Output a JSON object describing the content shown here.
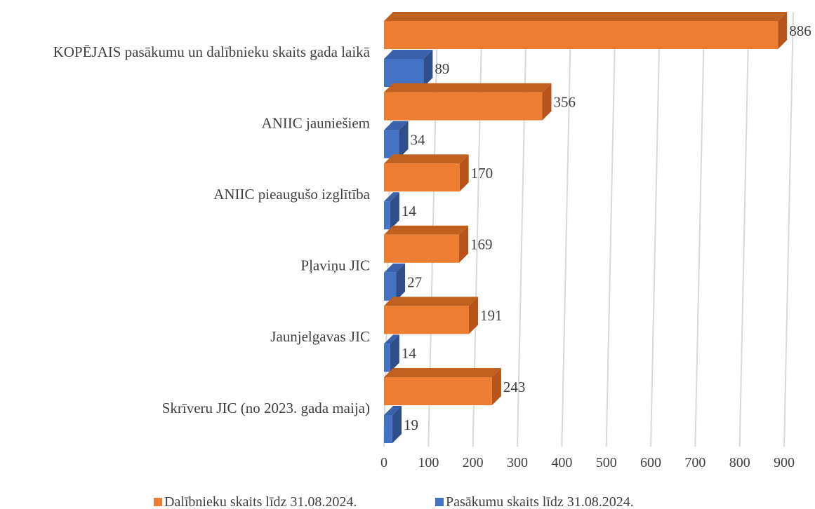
{
  "chart_data": {
    "type": "bar",
    "orientation": "horizontal",
    "three_d": true,
    "categories": [
      "KOPĒJAIS pasākumu un dalībnieku skaits gada laikā",
      "ANIIC jauniešiem",
      "ANIIC pieaugušo izglītība",
      "Pļaviņu JIC",
      "Jaunjelgavas JIC",
      "Skrīveru JIC (no 2023. gada maija)"
    ],
    "series": [
      {
        "name": "Dalībnieku skaits līdz 31.08.2024.",
        "values": [
          886,
          356,
          170,
          169,
          191,
          243
        ],
        "color": "#ED7D31",
        "color_side": "#B8531A",
        "color_top": "#C0601F"
      },
      {
        "name": "Pasākumu skaits līdz 31.08.2024.",
        "values": [
          89,
          34,
          14,
          27,
          14,
          19
        ],
        "color": "#4472C4",
        "color_side": "#2F4F8A",
        "color_top": "#3A62AA"
      }
    ],
    "x_ticks": [
      "0",
      "100",
      "200",
      "300",
      "400",
      "500",
      "600",
      "700",
      "800",
      "900"
    ],
    "xlim": [
      0,
      900
    ],
    "grid": true,
    "legend": "bottom",
    "title": "",
    "xlabel": "",
    "ylabel": ""
  }
}
